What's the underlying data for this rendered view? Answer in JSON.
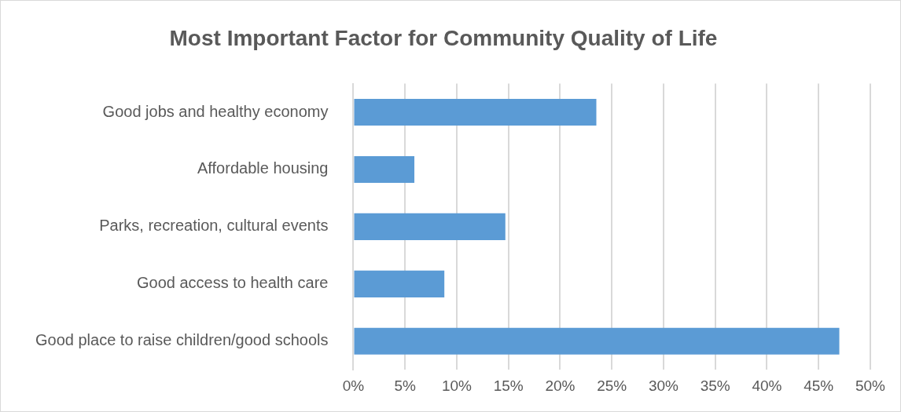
{
  "chart_data": {
    "type": "bar",
    "orientation": "horizontal",
    "title": "Most Important Factor for Community Quality of Life",
    "categories": [
      "Good jobs and healthy economy",
      "Affordable housing",
      "Parks, recreation, cultural events",
      "Good access to health care",
      "Good place to raise children/good schools"
    ],
    "values": [
      23.5,
      5.9,
      14.7,
      8.8,
      47.0
    ],
    "color": "#5b9bd5",
    "xlim": [
      0,
      50
    ],
    "xticks": [
      {
        "value": 0,
        "label": "0%"
      },
      {
        "value": 5,
        "label": "5%"
      },
      {
        "value": 10,
        "label": "10%"
      },
      {
        "value": 15,
        "label": "15%"
      },
      {
        "value": 20,
        "label": "20%"
      },
      {
        "value": 25,
        "label": "25%"
      },
      {
        "value": 30,
        "label": "30%"
      },
      {
        "value": 35,
        "label": "35%"
      },
      {
        "value": 40,
        "label": "40%"
      },
      {
        "value": 45,
        "label": "45%"
      },
      {
        "value": 50,
        "label": "50%"
      }
    ],
    "grid": "x",
    "legend": false
  }
}
